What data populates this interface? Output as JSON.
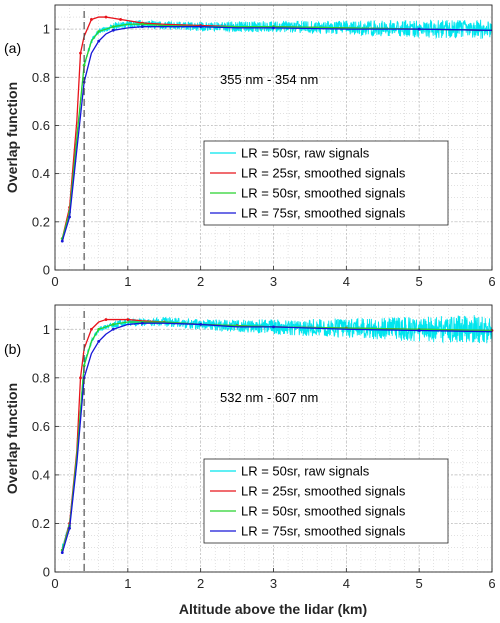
{
  "figure": {
    "xlabel": "Altitude above the lidar (km)"
  },
  "chart_data": [
    {
      "type": "line",
      "panel_label": "(a)",
      "annotation": "355 nm - 354 nm",
      "xlabel": "",
      "ylabel": "Overlap function",
      "xlim": [
        0,
        6
      ],
      "ylim": [
        0,
        1.1
      ],
      "xticks": [
        0,
        1,
        2,
        3,
        4,
        5,
        6
      ],
      "yticks": [
        0,
        0.2,
        0.4,
        0.6,
        0.8,
        1
      ],
      "grid": true,
      "legend_position": "center-right",
      "reference_line_x": 0.4,
      "series": [
        {
          "name": "LR = 50sr, raw signals",
          "color": "#00e5ee",
          "raw": true,
          "noise_base": 0.006,
          "noise_growth": 0.01,
          "x": [
            0.1,
            0.2,
            0.3,
            0.4,
            0.5,
            0.6,
            0.7,
            0.8,
            1.0,
            1.2,
            1.5,
            2.0,
            2.5,
            3.0,
            4.0,
            5.0,
            6.0
          ],
          "y": [
            0.13,
            0.24,
            0.55,
            0.85,
            0.95,
            0.99,
            1.0,
            1.01,
            1.02,
            1.02,
            1.015,
            1.01,
            1.01,
            1.01,
            1.005,
            1.0,
            1.0
          ]
        },
        {
          "name": "LR = 25sr, smoothed signals",
          "color": "#e8141b",
          "x": [
            0.1,
            0.2,
            0.3,
            0.35,
            0.4,
            0.5,
            0.6,
            0.7,
            0.8,
            0.9,
            1.0,
            1.2,
            1.5,
            2.0,
            2.5,
            3.0,
            4.0,
            5.0,
            6.0
          ],
          "y": [
            0.13,
            0.26,
            0.62,
            0.9,
            0.97,
            1.04,
            1.05,
            1.05,
            1.045,
            1.04,
            1.035,
            1.025,
            1.02,
            1.015,
            1.01,
            1.01,
            1.005,
            1.0,
            0.995
          ]
        },
        {
          "name": "LR = 50sr, smoothed signals",
          "color": "#28d22f",
          "x": [
            0.1,
            0.2,
            0.3,
            0.4,
            0.5,
            0.6,
            0.7,
            0.8,
            1.0,
            1.2,
            1.5,
            2.0,
            2.5,
            3.0,
            4.0,
            5.0,
            6.0
          ],
          "y": [
            0.13,
            0.24,
            0.55,
            0.85,
            0.95,
            0.99,
            1.0,
            1.01,
            1.02,
            1.02,
            1.015,
            1.01,
            1.01,
            1.01,
            1.005,
            1.0,
            0.995
          ]
        },
        {
          "name": "LR = 75sr, smoothed signals",
          "color": "#1616d8",
          "x": [
            0.1,
            0.2,
            0.3,
            0.4,
            0.5,
            0.6,
            0.7,
            0.8,
            1.0,
            1.2,
            1.5,
            2.0,
            2.5,
            3.0,
            4.0,
            5.0,
            6.0
          ],
          "y": [
            0.12,
            0.22,
            0.5,
            0.78,
            0.9,
            0.95,
            0.98,
            0.995,
            1.005,
            1.01,
            1.01,
            1.01,
            1.005,
            1.005,
            1.0,
            1.0,
            0.995
          ]
        }
      ]
    },
    {
      "type": "line",
      "panel_label": "(b)",
      "annotation": "532 nm - 607 nm",
      "xlabel": "Altitude above the lidar (km)",
      "ylabel": "Overlap function",
      "xlim": [
        0,
        6
      ],
      "ylim": [
        0,
        1.1
      ],
      "xticks": [
        0,
        1,
        2,
        3,
        4,
        5,
        6
      ],
      "yticks": [
        0,
        0.2,
        0.4,
        0.6,
        0.8,
        1
      ],
      "grid": true,
      "legend_position": "center-right",
      "reference_line_x": 0.4,
      "series": [
        {
          "name": "LR = 50sr, raw signals",
          "color": "#00e5ee",
          "raw": true,
          "noise_base": 0.006,
          "noise_growth": 0.018,
          "x": [
            0.1,
            0.2,
            0.3,
            0.4,
            0.5,
            0.6,
            0.7,
            0.8,
            1.0,
            1.2,
            1.5,
            2.0,
            2.5,
            3.0,
            4.0,
            5.0,
            6.0
          ],
          "y": [
            0.1,
            0.2,
            0.48,
            0.86,
            0.95,
            1.0,
            1.01,
            1.02,
            1.03,
            1.03,
            1.03,
            1.02,
            1.015,
            1.01,
            1.005,
            1.0,
            1.0
          ]
        },
        {
          "name": "LR = 25sr, smoothed signals",
          "color": "#e8141b",
          "x": [
            0.1,
            0.2,
            0.3,
            0.35,
            0.4,
            0.5,
            0.6,
            0.7,
            0.8,
            1.0,
            1.2,
            1.5,
            2.0,
            2.5,
            3.0,
            4.0,
            5.0,
            6.0
          ],
          "y": [
            0.09,
            0.2,
            0.5,
            0.8,
            0.92,
            1.0,
            1.03,
            1.04,
            1.04,
            1.04,
            1.035,
            1.03,
            1.02,
            1.015,
            1.01,
            1.005,
            1.0,
            0.995
          ]
        },
        {
          "name": "LR = 50sr, smoothed signals",
          "color": "#28d22f",
          "x": [
            0.1,
            0.2,
            0.3,
            0.4,
            0.5,
            0.6,
            0.7,
            0.8,
            1.0,
            1.2,
            1.5,
            2.0,
            2.5,
            3.0,
            4.0,
            5.0,
            6.0
          ],
          "y": [
            0.09,
            0.19,
            0.48,
            0.85,
            0.95,
            1.0,
            1.01,
            1.02,
            1.03,
            1.03,
            1.03,
            1.02,
            1.015,
            1.01,
            1.005,
            1.0,
            0.995
          ]
        },
        {
          "name": "LR = 75sr, smoothed signals",
          "color": "#1616d8",
          "x": [
            0.1,
            0.2,
            0.3,
            0.4,
            0.5,
            0.6,
            0.7,
            0.8,
            1.0,
            1.2,
            1.5,
            2.0,
            2.5,
            3.0,
            4.0,
            5.0,
            6.0
          ],
          "y": [
            0.08,
            0.18,
            0.45,
            0.8,
            0.9,
            0.95,
            0.98,
            1.0,
            1.02,
            1.025,
            1.025,
            1.02,
            1.01,
            1.01,
            1.0,
            0.995,
            0.99
          ]
        }
      ]
    }
  ]
}
